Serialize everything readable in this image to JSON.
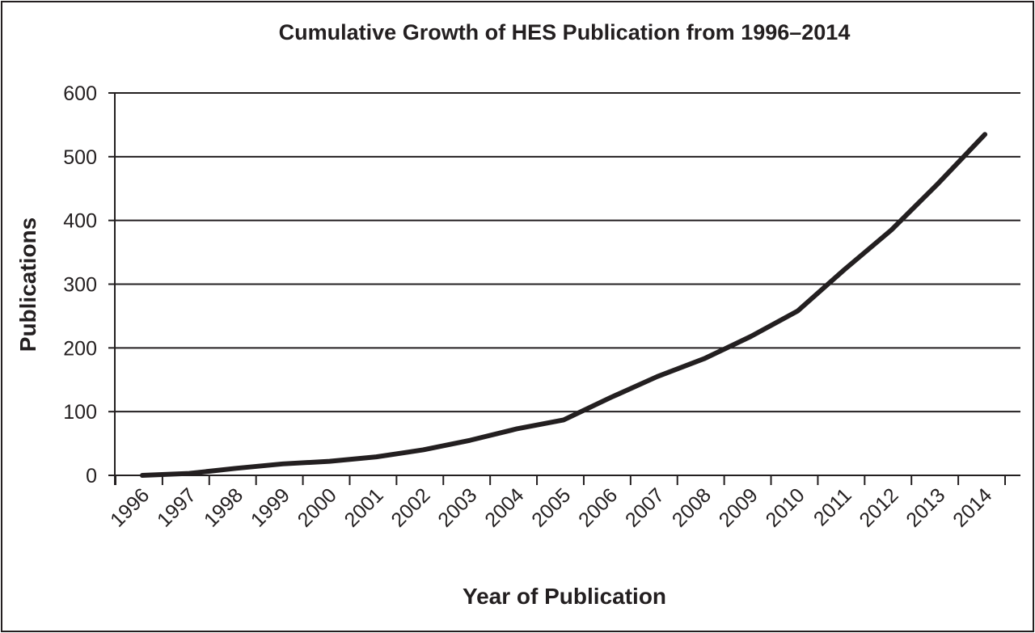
{
  "chart_data": {
    "type": "line",
    "title": "Cumulative Growth of HES Publication from 1996–2014",
    "xlabel": "Year of Publication",
    "ylabel": "Publications",
    "categories": [
      "1996",
      "1997",
      "1998",
      "1999",
      "2000",
      "2001",
      "2002",
      "2003",
      "2004",
      "2005",
      "2006",
      "2007",
      "2008",
      "2009",
      "2010",
      "2011",
      "2012",
      "2013",
      "2014"
    ],
    "y_ticks": [
      "0",
      "100",
      "200",
      "300",
      "400",
      "500",
      "600"
    ],
    "ylim": [
      0,
      600
    ],
    "grid": true,
    "legend": "none",
    "series": [
      {
        "values": [
          0,
          3,
          11,
          18,
          22,
          29,
          40,
          55,
          73,
          87,
          122,
          155,
          183,
          218,
          258,
          323,
          385,
          458,
          535
        ]
      }
    ],
    "colors": {
      "line": "#231f20",
      "grid": "#231f20",
      "text": "#231f20"
    }
  }
}
